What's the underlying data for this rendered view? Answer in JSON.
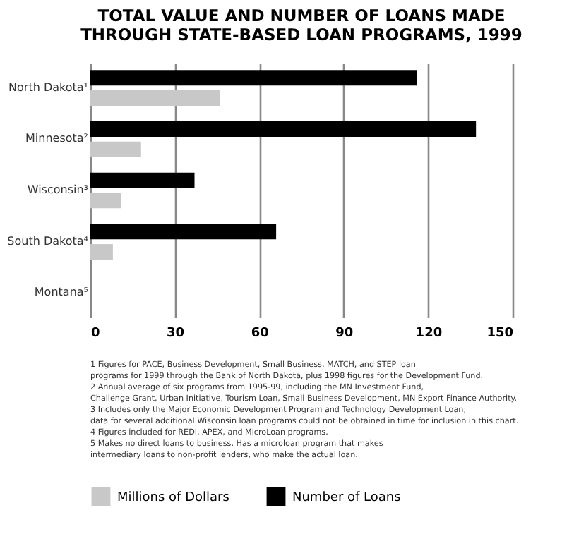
{
  "chart_data": {
    "type": "bar",
    "orientation": "horizontal",
    "title": "TOTAL VALUE AND NUMBER OF LOANS MADE\nTHROUGH STATE-BASED LOAN PROGRAMS, 1999",
    "categories": [
      "North Dakota¹",
      "Minnesota²",
      "Wisconsin³",
      "South Dakota⁴",
      "Montana⁵"
    ],
    "series": [
      {
        "name": "Millions of Dollars",
        "color": "#c8c8c8",
        "values": [
          46,
          18,
          11,
          8,
          null
        ]
      },
      {
        "name": "Number of Loans",
        "color": "#000000",
        "values": [
          116,
          137,
          37,
          66,
          null
        ]
      }
    ],
    "xlim": [
      0,
      150
    ],
    "xticks": [
      0,
      30,
      60,
      90,
      120,
      150
    ],
    "grid": "x",
    "legend": "bottom",
    "annotations": [
      "1 Figures for PACE, Business Development, Small Business, MATCH, and STEP loan\n   programs for 1999 through the Bank of North Dakota, plus 1998 figures for the Development Fund.",
      "2 Annual average of six programs from 1995-99, including the MN Investment Fund,\n   Challenge Grant, Urban Initiative, Tourism Loan, Small Business Development, MN Export Finance Authority.",
      "3 Includes only the Major Economic Development Program and Technology Development Loan;\n  data for several additional Wisconsin loan programs could not be obtained in time for inclusion in this chart.",
      "4 Figures included for REDI, APEX, and MicroLoan programs.",
      "5 Makes no direct loans to business. Has a microloan program that makes\n   intermediary loans to non-profit lenders, who make the actual loan."
    ]
  }
}
